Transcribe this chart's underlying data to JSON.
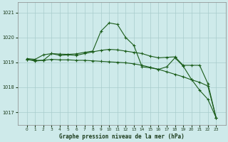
{
  "xlabel": "Graphe pression niveau de la mer (hPa)",
  "x_ticks": [
    0,
    1,
    2,
    3,
    4,
    5,
    6,
    7,
    8,
    9,
    10,
    11,
    12,
    13,
    14,
    15,
    16,
    17,
    18,
    19,
    20,
    21,
    22,
    23
  ],
  "ylim": [
    1016.5,
    1021.4
  ],
  "yticks": [
    1017,
    1018,
    1019,
    1020,
    1021
  ],
  "bg_color": "#ceeaea",
  "grid_color": "#a8cccc",
  "line_color": "#1a5c1a",
  "line1": [
    1019.15,
    1019.12,
    1019.3,
    1019.35,
    1019.33,
    1019.32,
    1019.34,
    1019.4,
    1019.45,
    1020.25,
    1020.58,
    1020.52,
    1020.0,
    1019.68,
    1018.82,
    1018.78,
    1018.72,
    1018.82,
    1019.18,
    1018.85,
    1018.32,
    1017.88,
    1017.52,
    1016.78
  ],
  "line2": [
    1019.12,
    1019.05,
    1019.08,
    1019.35,
    1019.28,
    1019.3,
    1019.28,
    1019.35,
    1019.42,
    1019.48,
    1019.52,
    1019.5,
    1019.45,
    1019.4,
    1019.35,
    1019.25,
    1019.18,
    1019.2,
    1019.22,
    1018.88,
    1018.88,
    1018.88,
    1018.15,
    1016.78
  ],
  "line3": [
    1019.12,
    1019.08,
    1019.08,
    1019.12,
    1019.1,
    1019.1,
    1019.08,
    1019.08,
    1019.06,
    1019.04,
    1019.02,
    1019.0,
    1018.98,
    1018.94,
    1018.88,
    1018.8,
    1018.72,
    1018.62,
    1018.52,
    1018.42,
    1018.3,
    1018.2,
    1018.05,
    1016.78
  ]
}
